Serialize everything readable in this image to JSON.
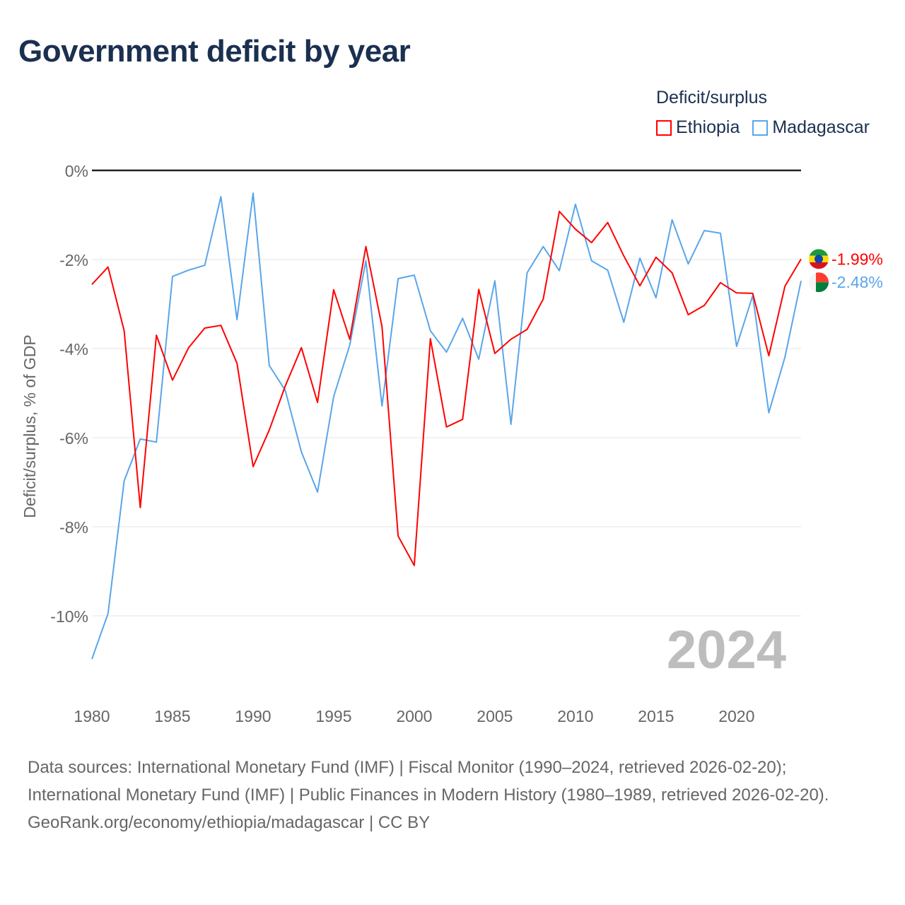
{
  "title": "Government deficit by year",
  "legend": {
    "title": "Deficit/surplus",
    "items": [
      {
        "name": "Ethiopia",
        "color": "#ff0000"
      },
      {
        "name": "Madagascar",
        "color": "#5aa5ea"
      }
    ]
  },
  "chart_data": {
    "type": "line",
    "title": "Government deficit by year",
    "xlabel": "",
    "ylabel": "Deficit/surplus, % of GDP",
    "xlim": [
      1980,
      2024
    ],
    "ylim": [
      -11,
      0
    ],
    "x_ticks": [
      "1980",
      "1985",
      "1990",
      "1995",
      "2000",
      "2005",
      "2010",
      "2015",
      "2020"
    ],
    "y_ticks": [
      "0%",
      "-2%",
      "-4%",
      "-6%",
      "-8%",
      "-10%"
    ],
    "y_tick_values": [
      0,
      -2,
      -4,
      -6,
      -8,
      -10
    ],
    "grid": true,
    "legend_position": "top-right",
    "year_label": "2024",
    "x": [
      1980,
      1981,
      1982,
      1983,
      1984,
      1985,
      1986,
      1987,
      1988,
      1989,
      1990,
      1991,
      1992,
      1993,
      1994,
      1995,
      1996,
      1997,
      1998,
      1999,
      2000,
      2001,
      2002,
      2003,
      2004,
      2005,
      2006,
      2007,
      2008,
      2009,
      2010,
      2011,
      2012,
      2013,
      2014,
      2015,
      2016,
      2017,
      2018,
      2019,
      2020,
      2021,
      2022,
      2023,
      2024
    ],
    "series": [
      {
        "name": "Ethiopia",
        "color": "#ff0000",
        "end_label": "-1.99%",
        "values": [
          -2.56,
          -2.17,
          -3.6,
          -7.57,
          -3.7,
          -4.71,
          -3.98,
          -3.54,
          -3.48,
          -4.33,
          -6.65,
          -5.83,
          -4.84,
          -3.98,
          -5.21,
          -2.68,
          -3.79,
          -1.71,
          -3.51,
          -8.21,
          -8.87,
          -3.78,
          -5.76,
          -5.59,
          -2.67,
          -4.11,
          -3.79,
          -3.57,
          -2.89,
          -0.92,
          -1.32,
          -1.62,
          -1.17,
          -1.92,
          -2.59,
          -1.95,
          -2.3,
          -3.24,
          -3.03,
          -2.52,
          -2.75,
          -2.76,
          -4.16,
          -2.6,
          -1.99
        ]
      },
      {
        "name": "Madagascar",
        "color": "#5aa5ea",
        "end_label": "-2.48%",
        "values": [
          -10.97,
          -9.95,
          -6.97,
          -6.03,
          -6.1,
          -2.38,
          -2.24,
          -2.13,
          -0.59,
          -3.35,
          -0.51,
          -4.38,
          -4.94,
          -6.32,
          -7.22,
          -5.08,
          -3.92,
          -2.03,
          -5.29,
          -2.43,
          -2.35,
          -3.6,
          -4.08,
          -3.32,
          -4.24,
          -2.48,
          -5.7,
          -2.3,
          -1.71,
          -2.25,
          -0.76,
          -2.03,
          -2.24,
          -3.41,
          -1.97,
          -2.86,
          -1.11,
          -2.1,
          -1.35,
          -1.41,
          -3.95,
          -2.81,
          -5.44,
          -4.19,
          -2.48
        ]
      }
    ]
  },
  "footer": {
    "sources": "Data sources: International Monetary Fund (IMF) | Fiscal Monitor (1990–2024, retrieved 2026-02-20); International Monetary Fund (IMF) | Public Finances in Modern History (1980–1989, retrieved 2026-02-20).",
    "credit": "GeoRank.org/economy/ethiopia/madagascar | CC BY"
  }
}
